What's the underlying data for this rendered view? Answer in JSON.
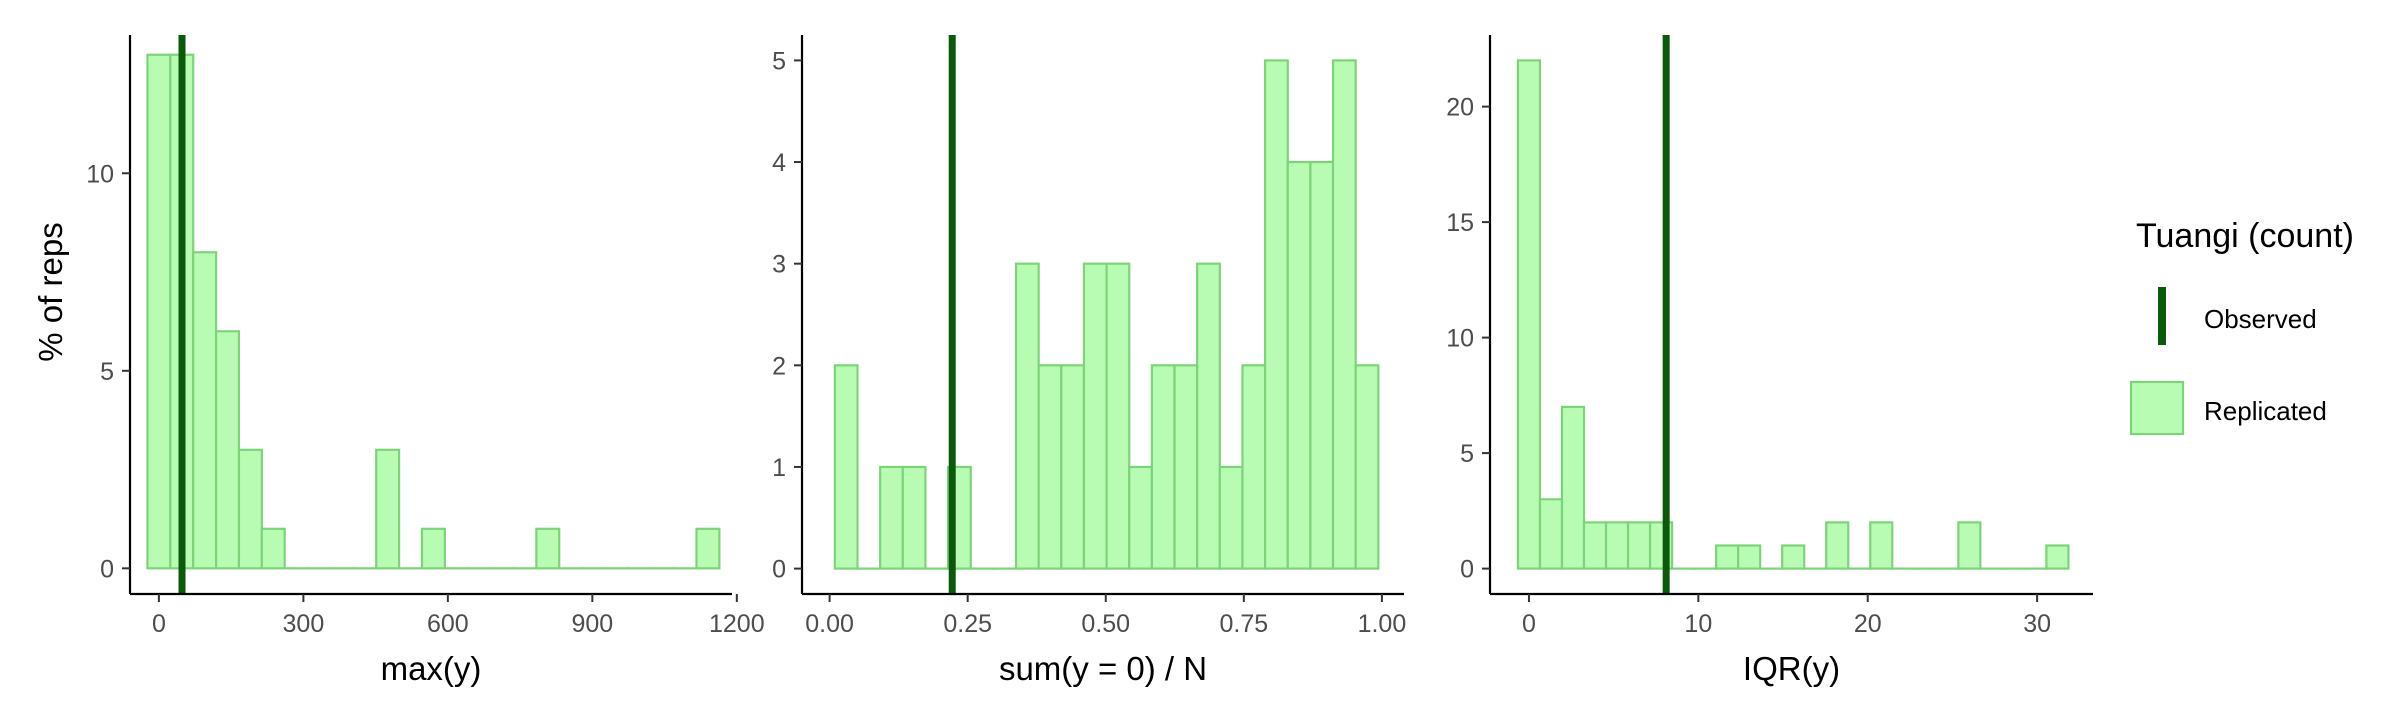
{
  "colors": {
    "bar_fill": "#b8fcb4",
    "bar_stroke": "#7ed37a",
    "observed_line": "#0b5a0b",
    "axis": "#000000",
    "tick_text": "#4d4d4d"
  },
  "y_axis_title": "% of reps",
  "legend": {
    "title": "Tuangi (count)",
    "observed_label": "Observed",
    "replicated_label": "Replicated"
  },
  "chart_data": [
    {
      "type": "bar",
      "xlabel": "max(y)",
      "ylabel": "% of reps",
      "xlim": [
        -60,
        1190
      ],
      "ylim": [
        -0.65,
        13.5
      ],
      "x_ticks": [
        0,
        300,
        600,
        900,
        1200
      ],
      "x_tick_labels": [
        "0",
        "300",
        "600",
        "900",
        "1200"
      ],
      "y_ticks": [
        0,
        5,
        10
      ],
      "y_tick_labels": [
        "0",
        "5",
        "10"
      ],
      "bin_width": 47.5,
      "bins": [
        {
          "center": 0,
          "value": 13
        },
        {
          "center": 47.5,
          "value": 13
        },
        {
          "center": 95,
          "value": 8
        },
        {
          "center": 142.5,
          "value": 6
        },
        {
          "center": 190,
          "value": 3
        },
        {
          "center": 237.5,
          "value": 1
        },
        {
          "center": 285,
          "value": 0
        },
        {
          "center": 332.5,
          "value": 0
        },
        {
          "center": 380,
          "value": 0
        },
        {
          "center": 427.5,
          "value": 0
        },
        {
          "center": 475,
          "value": 3
        },
        {
          "center": 522.5,
          "value": 0
        },
        {
          "center": 570,
          "value": 1
        },
        {
          "center": 617.5,
          "value": 0
        },
        {
          "center": 665,
          "value": 0
        },
        {
          "center": 712.5,
          "value": 0
        },
        {
          "center": 760,
          "value": 0
        },
        {
          "center": 807.5,
          "value": 1
        },
        {
          "center": 855,
          "value": 0
        },
        {
          "center": 902.5,
          "value": 0
        },
        {
          "center": 950,
          "value": 0
        },
        {
          "center": 997.5,
          "value": 0
        },
        {
          "center": 1045,
          "value": 0
        },
        {
          "center": 1092.5,
          "value": 0
        },
        {
          "center": 1140,
          "value": 1
        }
      ],
      "observed": 48
    },
    {
      "type": "bar",
      "xlabel": "sum(y = 0) / N",
      "ylabel": "% of reps",
      "xlim": [
        -0.05,
        1.04
      ],
      "ylim": [
        -0.25,
        5.25
      ],
      "x_ticks": [
        0,
        0.25,
        0.5,
        0.75,
        1
      ],
      "x_tick_labels": [
        "0.00",
        "0.25",
        "0.50",
        "0.75",
        "1.00"
      ],
      "y_ticks": [
        0,
        1,
        2,
        3,
        4,
        5
      ],
      "y_tick_labels": [
        "0",
        "1",
        "2",
        "3",
        "4",
        "5"
      ],
      "bin_width": 0.041,
      "bins": [
        {
          "center": 0.03,
          "value": 2
        },
        {
          "center": 0.071,
          "value": 0
        },
        {
          "center": 0.112,
          "value": 1
        },
        {
          "center": 0.153,
          "value": 1
        },
        {
          "center": 0.194,
          "value": 0
        },
        {
          "center": 0.235,
          "value": 1
        },
        {
          "center": 0.276,
          "value": 0
        },
        {
          "center": 0.317,
          "value": 0
        },
        {
          "center": 0.358,
          "value": 3
        },
        {
          "center": 0.399,
          "value": 2
        },
        {
          "center": 0.44,
          "value": 2
        },
        {
          "center": 0.481,
          "value": 3
        },
        {
          "center": 0.522,
          "value": 3
        },
        {
          "center": 0.563,
          "value": 1
        },
        {
          "center": 0.604,
          "value": 2
        },
        {
          "center": 0.645,
          "value": 2
        },
        {
          "center": 0.686,
          "value": 3
        },
        {
          "center": 0.727,
          "value": 1
        },
        {
          "center": 0.768,
          "value": 2
        },
        {
          "center": 0.809,
          "value": 5
        },
        {
          "center": 0.85,
          "value": 4
        },
        {
          "center": 0.891,
          "value": 4
        },
        {
          "center": 0.932,
          "value": 5
        },
        {
          "center": 0.973,
          "value": 2
        }
      ],
      "observed": 0.222
    },
    {
      "type": "bar",
      "xlabel": "IQR(y)",
      "ylabel": "% of reps",
      "xlim": [
        -2.3,
        33.3
      ],
      "ylim": [
        -1.1,
        23.1
      ],
      "x_ticks": [
        0,
        10,
        20,
        30
      ],
      "x_tick_labels": [
        "0",
        "10",
        "20",
        "30"
      ],
      "y_ticks": [
        0,
        5,
        10,
        15,
        20
      ],
      "y_tick_labels": [
        "0",
        "5",
        "10",
        "15",
        "20"
      ],
      "bin_width": 1.3,
      "bins": [
        {
          "center": 0,
          "value": 22
        },
        {
          "center": 1.3,
          "value": 3
        },
        {
          "center": 2.6,
          "value": 7
        },
        {
          "center": 3.9,
          "value": 2
        },
        {
          "center": 5.2,
          "value": 2
        },
        {
          "center": 6.5,
          "value": 2
        },
        {
          "center": 7.8,
          "value": 2
        },
        {
          "center": 9.1,
          "value": 0
        },
        {
          "center": 10.4,
          "value": 0
        },
        {
          "center": 11.7,
          "value": 1
        },
        {
          "center": 13.0,
          "value": 1
        },
        {
          "center": 14.3,
          "value": 0
        },
        {
          "center": 15.6,
          "value": 1
        },
        {
          "center": 16.9,
          "value": 0
        },
        {
          "center": 18.2,
          "value": 2
        },
        {
          "center": 19.5,
          "value": 0
        },
        {
          "center": 20.8,
          "value": 2
        },
        {
          "center": 22.1,
          "value": 0
        },
        {
          "center": 23.4,
          "value": 0
        },
        {
          "center": 24.7,
          "value": 0
        },
        {
          "center": 26.0,
          "value": 2
        },
        {
          "center": 27.3,
          "value": 0
        },
        {
          "center": 28.6,
          "value": 0
        },
        {
          "center": 29.9,
          "value": 0
        },
        {
          "center": 31.2,
          "value": 1
        }
      ],
      "observed": 8.1
    }
  ]
}
